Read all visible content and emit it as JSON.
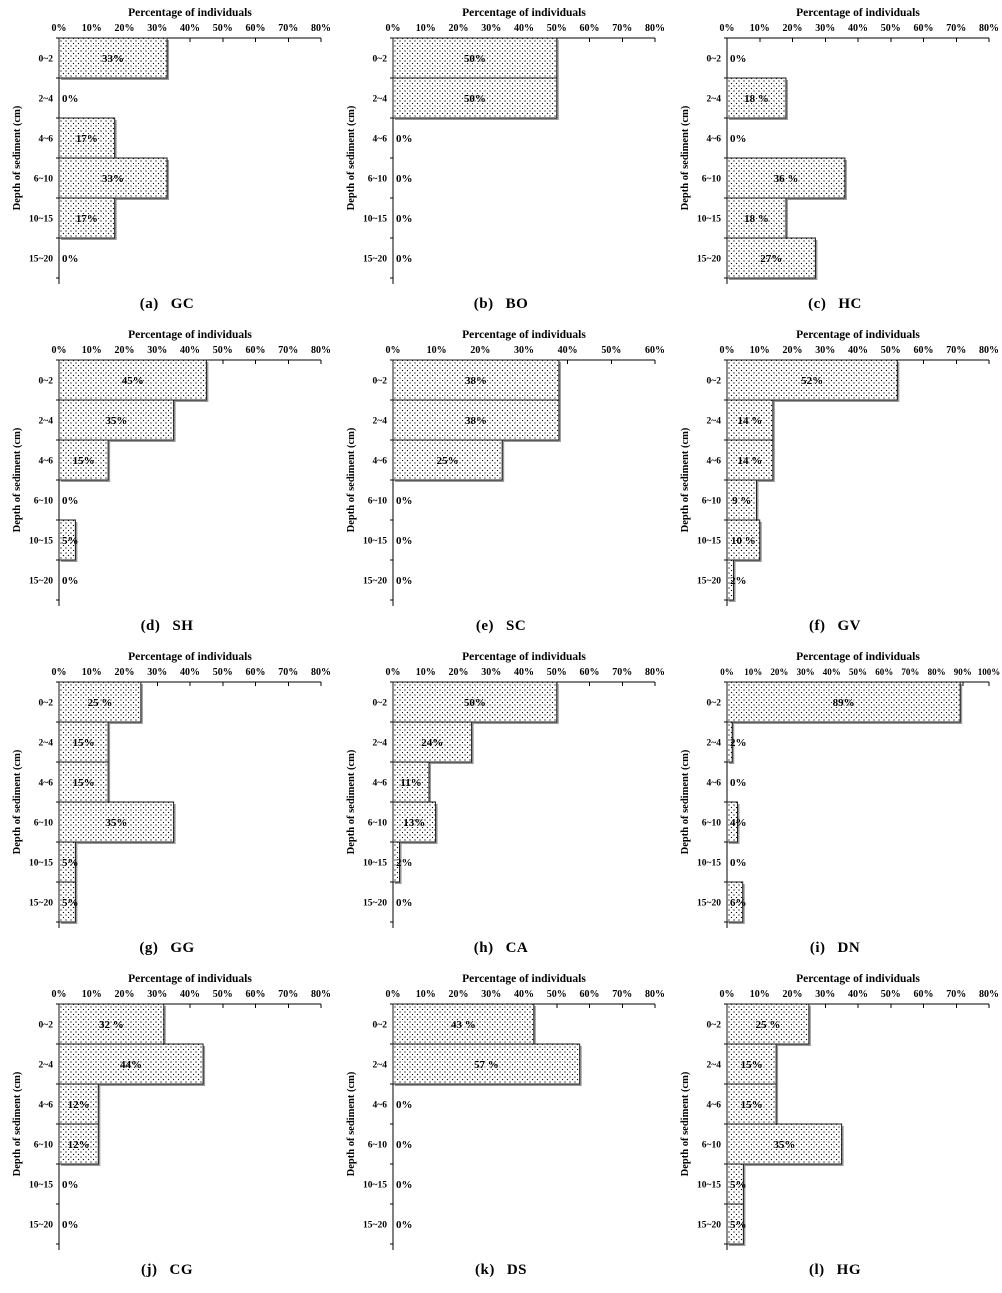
{
  "colors": {
    "background": "#ffffff",
    "bar_fill": "#ffffff",
    "bar_dot": "#000000",
    "bar_border": "#1a1a1a",
    "bar_shadow": "#9a9a9a",
    "axis": "#000000",
    "text": "#000000"
  },
  "shared": {
    "axis_title": "Percentage of individuals",
    "y_axis_title": "Depth of sediment (cm)",
    "categories": [
      "0~2",
      "2~4",
      "4~6",
      "6~10",
      "10~15",
      "15~20"
    ]
  },
  "chart_data": [
    {
      "type": "bar",
      "orientation": "horizontal",
      "caption_prefix": "(a)",
      "code": "GC",
      "title": "Percentage of individuals",
      "ylabel": "Depth of sediment (cm)",
      "categories": [
        "0~2",
        "2~4",
        "4~6",
        "6~10",
        "10~15",
        "15~20"
      ],
      "values": [
        33,
        0,
        17,
        33,
        17,
        0
      ],
      "value_labels": [
        "33%",
        "0%",
        "17%",
        "33%",
        "17%",
        "0%"
      ],
      "xlim": [
        0,
        80
      ],
      "tick_step": 10,
      "grid": false,
      "legend": false
    },
    {
      "type": "bar",
      "orientation": "horizontal",
      "caption_prefix": "(b)",
      "code": "BO",
      "title": "Percentage of individuals",
      "ylabel": "Depth of sediment (cm)",
      "categories": [
        "0~2",
        "2~4",
        "4~6",
        "6~10",
        "10~15",
        "15~20"
      ],
      "values": [
        50,
        50,
        0,
        0,
        0,
        0
      ],
      "value_labels": [
        "50%",
        "50%",
        "0%",
        "0%",
        "0%",
        "0%"
      ],
      "xlim": [
        0,
        80
      ],
      "tick_step": 10,
      "grid": false,
      "legend": false
    },
    {
      "type": "bar",
      "orientation": "horizontal",
      "caption_prefix": "(c)",
      "code": "HC",
      "title": "Percentage of individuals",
      "ylabel": "Depth of sediment (cm)",
      "categories": [
        "0~2",
        "2~4",
        "4~6",
        "6~10",
        "10~15",
        "15~20"
      ],
      "values": [
        0,
        18,
        0,
        36,
        18,
        27
      ],
      "value_labels": [
        "0%",
        "18 %",
        "0%",
        "36 %",
        "18 %",
        "27%"
      ],
      "xlim": [
        0,
        80
      ],
      "tick_step": 10,
      "grid": false,
      "legend": false
    },
    {
      "type": "bar",
      "orientation": "horizontal",
      "caption_prefix": "(d)",
      "code": "SH",
      "title": "Percentage of individuals",
      "ylabel": "Depth of sediment (cm)",
      "categories": [
        "0~2",
        "2~4",
        "4~6",
        "6~10",
        "10~15",
        "15~20"
      ],
      "values": [
        45,
        35,
        15,
        0,
        5,
        0
      ],
      "value_labels": [
        "45%",
        "35%",
        "15%",
        "0%",
        "5%",
        "0%"
      ],
      "xlim": [
        0,
        80
      ],
      "tick_step": 10,
      "grid": false,
      "legend": false
    },
    {
      "type": "bar",
      "orientation": "horizontal",
      "caption_prefix": "(e)",
      "code": "SC",
      "title": "Percentage of individuals",
      "ylabel": "Depth of sediment (cm)",
      "categories": [
        "0~2",
        "2~4",
        "4~6",
        "6~10",
        "10~15",
        "15~20"
      ],
      "values": [
        38,
        38,
        25,
        0,
        0,
        0
      ],
      "value_labels": [
        "38%",
        "38%",
        "25%",
        "0%",
        "0%",
        "0%"
      ],
      "xlim": [
        0,
        60
      ],
      "tick_step": 10,
      "grid": false,
      "legend": false
    },
    {
      "type": "bar",
      "orientation": "horizontal",
      "caption_prefix": "(f)",
      "code": "GV",
      "title": "Percentage of individuals",
      "ylabel": "Depth of sediment (cm)",
      "categories": [
        "0~2",
        "2~4",
        "4~6",
        "6~10",
        "10~15",
        "15~20"
      ],
      "values": [
        52,
        14,
        14,
        9,
        10,
        2
      ],
      "value_labels": [
        "52%",
        "14 %",
        "14 %",
        "9 %",
        "10 %",
        "2%"
      ],
      "xlim": [
        0,
        80
      ],
      "tick_step": 10,
      "grid": false,
      "legend": false
    },
    {
      "type": "bar",
      "orientation": "horizontal",
      "caption_prefix": "(g)",
      "code": "GG",
      "title": "Percentage of individuals",
      "ylabel": "Depth of sediment (cm)",
      "categories": [
        "0~2",
        "2~4",
        "4~6",
        "6~10",
        "10~15",
        "15~20"
      ],
      "values": [
        25,
        15,
        15,
        35,
        5,
        5
      ],
      "value_labels": [
        "25 %",
        "15%",
        "15%",
        "35%",
        "5%",
        "5%"
      ],
      "xlim": [
        0,
        80
      ],
      "tick_step": 10,
      "grid": false,
      "legend": false
    },
    {
      "type": "bar",
      "orientation": "horizontal",
      "caption_prefix": "(h)",
      "code": "CA",
      "title": "Percentage of individuals",
      "ylabel": "Depth of sediment (cm)",
      "categories": [
        "0~2",
        "2~4",
        "4~6",
        "6~10",
        "10~15",
        "15~20"
      ],
      "values": [
        50,
        24,
        11,
        13,
        2,
        0
      ],
      "value_labels": [
        "50%",
        "24%",
        "11%",
        "13%",
        "2%",
        "0%"
      ],
      "xlim": [
        0,
        80
      ],
      "tick_step": 10,
      "grid": false,
      "legend": false
    },
    {
      "type": "bar",
      "orientation": "horizontal",
      "caption_prefix": "(i)",
      "code": "DN",
      "title": "Percentage of individuals",
      "ylabel": "Depth of sediment (cm)",
      "categories": [
        "0~2",
        "2~4",
        "4~6",
        "6~10",
        "10~15",
        "15~20"
      ],
      "values": [
        89,
        2,
        0,
        4,
        0,
        6
      ],
      "value_labels": [
        "89%",
        "2%",
        "0%",
        "4%",
        "0%",
        "6%"
      ],
      "xlim": [
        0,
        100
      ],
      "tick_step": 10,
      "grid": false,
      "legend": false
    },
    {
      "type": "bar",
      "orientation": "horizontal",
      "caption_prefix": "(j)",
      "code": "CG",
      "title": "Percentage of individuals",
      "ylabel": "Depth of sediment (cm)",
      "categories": [
        "0~2",
        "2~4",
        "4~6",
        "6~10",
        "10~15",
        "15~20"
      ],
      "values": [
        32,
        44,
        12,
        12,
        0,
        0
      ],
      "value_labels": [
        "32 %",
        "44%",
        "12%",
        "12%",
        "0%",
        "0%"
      ],
      "xlim": [
        0,
        80
      ],
      "tick_step": 10,
      "grid": false,
      "legend": false
    },
    {
      "type": "bar",
      "orientation": "horizontal",
      "caption_prefix": "(k)",
      "code": "DS",
      "title": "Percentage of individuals",
      "ylabel": "Depth of sediment (cm)",
      "categories": [
        "0~2",
        "2~4",
        "4~6",
        "6~10",
        "10~15",
        "15~20"
      ],
      "values": [
        43,
        57,
        0,
        0,
        0,
        0
      ],
      "value_labels": [
        "43 %",
        "57 %",
        "0%",
        "0%",
        "0%",
        "0%"
      ],
      "xlim": [
        0,
        80
      ],
      "tick_step": 10,
      "grid": false,
      "legend": false
    },
    {
      "type": "bar",
      "orientation": "horizontal",
      "caption_prefix": "(l)",
      "code": "HG",
      "title": "Percentage of individuals",
      "ylabel": "Depth of sediment (cm)",
      "categories": [
        "0~2",
        "2~4",
        "4~6",
        "6~10",
        "10~15",
        "15~20"
      ],
      "values": [
        25,
        15,
        15,
        35,
        5,
        5
      ],
      "value_labels": [
        "25 %",
        "15%",
        "15%",
        "35%",
        "5%",
        "5%"
      ],
      "xlim": [
        0,
        80
      ],
      "tick_step": 10,
      "grid": false,
      "legend": false
    }
  ]
}
